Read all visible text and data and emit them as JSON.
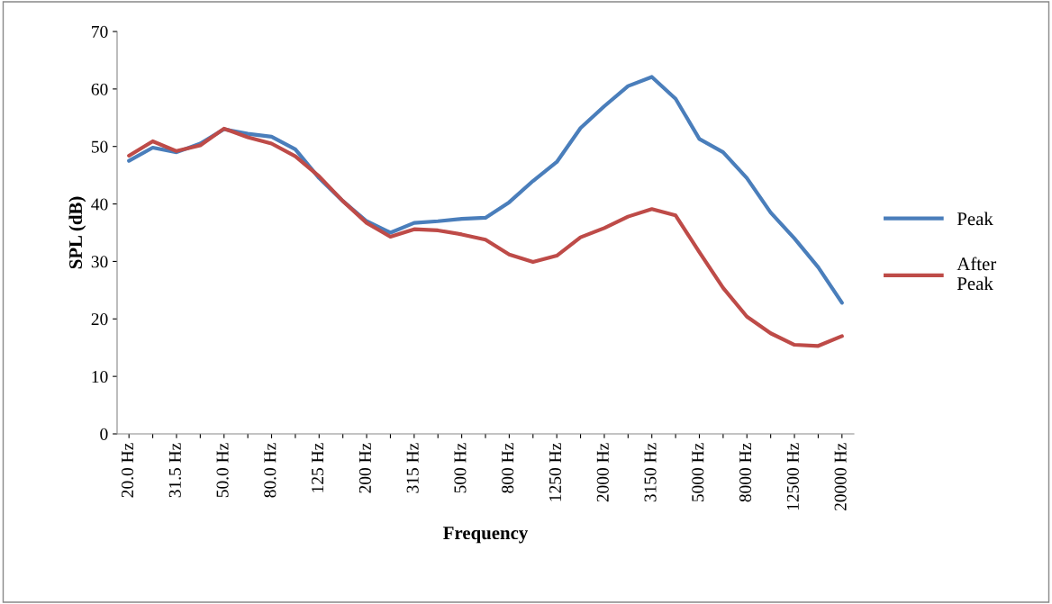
{
  "chart_data": {
    "type": "line",
    "xlabel": "Frequency",
    "ylabel": "SPL (dB)",
    "categories": [
      "20.0 Hz",
      null,
      "31.5 Hz",
      null,
      "50.0 Hz",
      null,
      "80.0 Hz",
      null,
      "125 Hz",
      null,
      "200 Hz",
      null,
      "315 Hz",
      null,
      "500 Hz",
      null,
      "800 Hz",
      null,
      "1250 Hz",
      null,
      "2000 Hz",
      null,
      "3150 Hz",
      null,
      "5000 Hz",
      null,
      "8000 Hz",
      null,
      "12500 Hz",
      null,
      "20000 Hz"
    ],
    "series": [
      {
        "name": "Peak",
        "color": "#4a7ebb",
        "values": [
          47.5,
          49.8,
          49.0,
          50.5,
          53.0,
          52.2,
          51.7,
          49.5,
          44.5,
          40.5,
          37.0,
          35.0,
          36.7,
          37.0,
          37.4,
          37.6,
          40.3,
          44.0,
          47.3,
          53.2,
          57.0,
          60.5,
          62.1,
          58.3,
          51.3,
          49.0,
          44.5,
          38.5,
          34.0,
          29.0,
          22.8
        ]
      },
      {
        "name": "After Peak",
        "color": "#be4b48",
        "values": [
          48.4,
          50.9,
          49.2,
          50.2,
          53.1,
          51.6,
          50.5,
          48.3,
          44.8,
          40.5,
          36.7,
          34.3,
          35.6,
          35.4,
          34.7,
          33.8,
          31.2,
          29.9,
          31.0,
          34.2,
          35.8,
          37.8,
          39.1,
          38.0,
          31.6,
          25.4,
          20.4,
          17.5,
          15.5,
          15.3,
          17.0
        ]
      }
    ],
    "ylim": [
      0,
      70
    ],
    "yticks": [
      0,
      10,
      20,
      30,
      40,
      50,
      60,
      70
    ],
    "grid": false,
    "legend": "right",
    "marker": "none",
    "line_style": "solid"
  }
}
